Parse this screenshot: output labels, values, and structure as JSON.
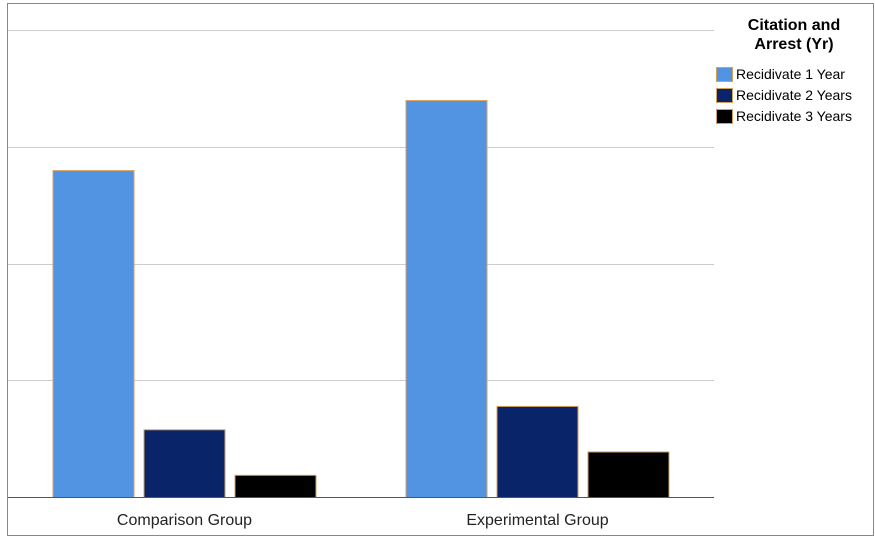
{
  "chart_data": {
    "type": "bar",
    "title": "",
    "xlabel": "",
    "ylabel": "",
    "categories": [
      "Comparison Group",
      "Experimental Group"
    ],
    "series": [
      {
        "name": "Recidivate 1 Year",
        "values": [
          28,
          34
        ],
        "color": "#5294e2"
      },
      {
        "name": "Recidivate 2 Years",
        "values": [
          5.8,
          7.8
        ],
        "color": "#0a246a"
      },
      {
        "name": "Recidivate 3 Years",
        "values": [
          1.9,
          3.9
        ],
        "color": "#000000"
      }
    ],
    "ylim": [
      0,
      40
    ],
    "ytick_step": 10,
    "grid": true,
    "bar_outline_color": "#d4a060",
    "legend": {
      "title_lines": [
        "Citation and",
        "Arrest (Yr)"
      ],
      "placement": "right-top"
    }
  }
}
